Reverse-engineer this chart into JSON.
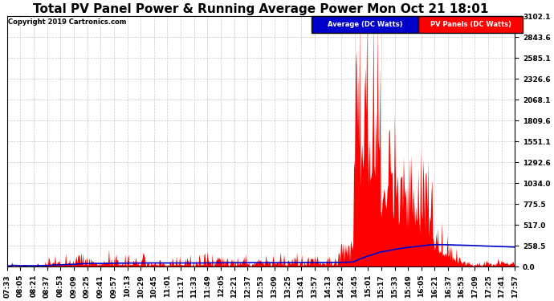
{
  "title": "Total PV Panel Power & Running Average Power Mon Oct 21 18:01",
  "copyright": "Copyright 2019 Cartronics.com",
  "legend_avg_label": "Average (DC Watts)",
  "legend_pv_label": "PV Panels (DC Watts)",
  "legend_avg_bg": "#0000cc",
  "legend_pv_bg": "#ff0000",
  "legend_text_color": "#ffffff",
  "ylabel_right_values": [
    3102.1,
    2843.6,
    2585.1,
    2326.6,
    2068.1,
    1809.6,
    1551.1,
    1292.6,
    1034.0,
    775.5,
    517.0,
    258.5,
    0.0
  ],
  "ylim": [
    0,
    3102.1
  ],
  "background_color": "#ffffff",
  "grid_color": "#c8c8c8",
  "pv_color": "#ff0000",
  "avg_color": "#0000cc",
  "title_fontsize": 11,
  "tick_fontsize": 6.5,
  "x_tick_labels": [
    "07:33",
    "08:05",
    "08:21",
    "08:37",
    "08:53",
    "09:09",
    "09:25",
    "09:41",
    "09:57",
    "10:13",
    "10:29",
    "10:45",
    "11:01",
    "11:17",
    "11:33",
    "11:49",
    "12:05",
    "12:21",
    "12:37",
    "12:53",
    "13:09",
    "13:25",
    "13:41",
    "13:57",
    "14:13",
    "14:29",
    "14:45",
    "15:01",
    "15:17",
    "15:33",
    "15:49",
    "16:05",
    "16:21",
    "16:37",
    "16:53",
    "17:09",
    "17:25",
    "17:41",
    "17:57"
  ]
}
